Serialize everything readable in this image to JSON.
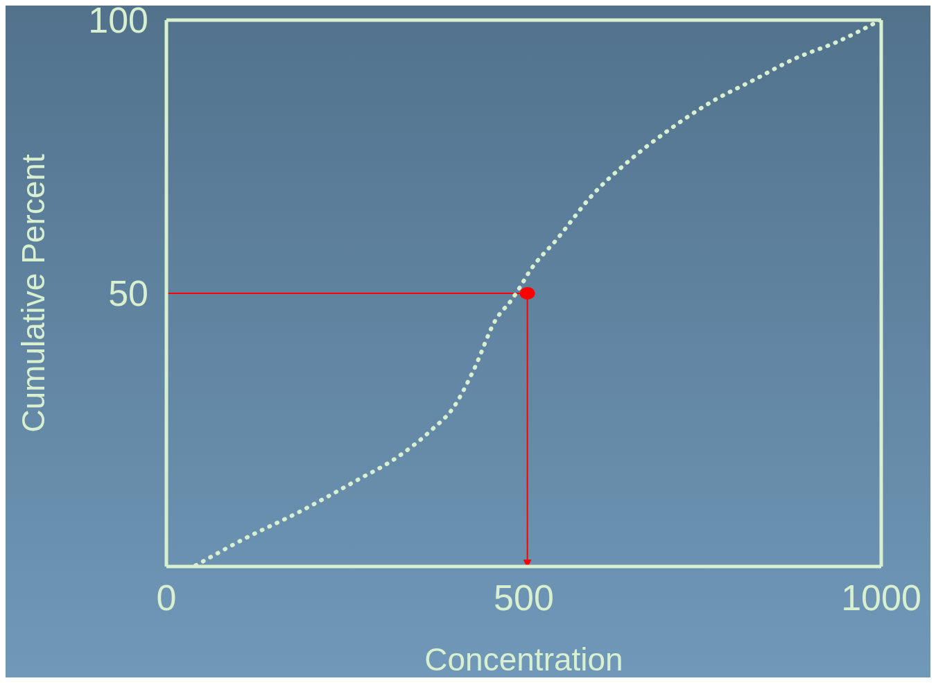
{
  "chart_data": {
    "type": "line",
    "xlabel": "Concentration",
    "ylabel": "Cumulative Percent",
    "series": [
      {
        "color": "#d8f0d0",
        "line_style": "dotted",
        "marker": "none",
        "x": [
          41,
          108,
          186,
          264,
          323,
          371,
          401,
          430,
          460,
          484,
          494,
          508,
          547,
          596,
          645,
          704,
          762,
          821,
          880,
          938,
          999
        ],
        "values": [
          0.2,
          5,
          10,
          15.6,
          20,
          25,
          29,
          36,
          45,
          49,
          51,
          54,
          60,
          68,
          74,
          80,
          85,
          89,
          93,
          96,
          100
        ]
      },
      {
        "type": "scatter",
        "color": "#ff0000",
        "marker": "circle",
        "x": [
          505
        ],
        "values": [
          50
        ]
      }
    ],
    "ref_lines": [
      {
        "axis": "y",
        "value": 50,
        "color": "#ff0000"
      },
      {
        "axis": "x",
        "value": 505,
        "color": "#ff0000"
      }
    ],
    "xlim": [
      0,
      1000
    ],
    "xticks": [
      0,
      500,
      1000
    ],
    "ylim": [
      0,
      100
    ],
    "yticks": [
      50,
      100
    ]
  }
}
